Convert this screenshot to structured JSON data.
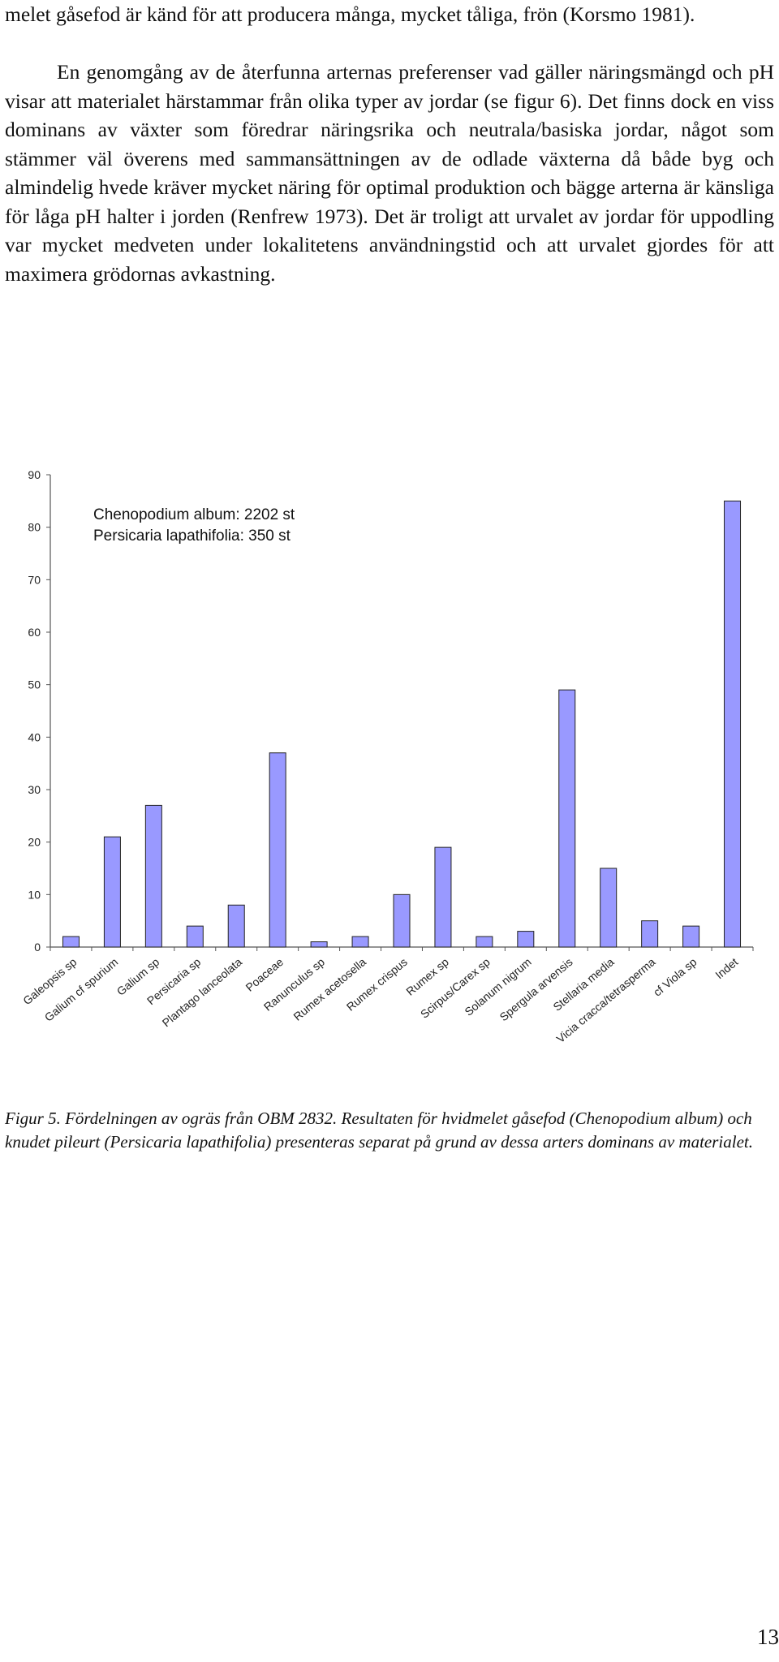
{
  "text": {
    "paragraph_1": "melet gåsefod är känd för att producera många, mycket tåliga, frön (Korsmo 1981).",
    "paragraph_2": "En genomgång av de återfunna arternas preferenser vad gäller näringsmängd och pH visar att materialet härstammar från olika typer av jordar (se figur 6). Det finns dock en viss dominans av växter som föredrar näringsrika och neutrala/basiska jordar, något som stämmer väl överens med sammansättningen av de odlade växterna då både byg och almindelig hvede kräver mycket näring för optimal produktion och bägge arterna är känsliga för låga pH halter i jorden (Renfrew 1973). Det är troligt att urvalet av jordar för uppodling var mycket medveten under lokalitetens användningstid och att urvalet gjordes för att maximera grödornas avkastning."
  },
  "figure": {
    "caption": "Figur 5. Fördelningen av ogräs från OBM 2832. Resultaten för hvidmelet gåsefod (Chenopodium album) och knudet pileurt (Persicaria lapathifolia) presenteras separat på grund av dessa arters dominans av materialet."
  },
  "chart_data": {
    "type": "bar",
    "title": "",
    "xlabel": "",
    "ylabel": "",
    "ylim": [
      0,
      90
    ],
    "yticks": [
      0,
      10,
      20,
      30,
      40,
      50,
      60,
      70,
      80,
      90
    ],
    "grid": false,
    "legend": "none",
    "bar_color": "#9999ff",
    "annotations": [
      "Chenopodium album: 2202 st",
      "Persicaria lapathifolia: 350 st"
    ],
    "categories": [
      "Galeopsis sp",
      "Galium cf spurium",
      "Galium sp",
      "Persicaria sp",
      "Plantago lanceolata",
      "Poaceae",
      "Ranunculus sp",
      "Rumex acetosella",
      "Rumex crispus",
      "Rumex sp",
      "Scirpus/Carex sp",
      "Solanum nigrum",
      "Spergula arvensis",
      "Stellaria media",
      "Vicia cracca/tetrasperma",
      "cf Viola sp",
      "Indet"
    ],
    "values": [
      2,
      21,
      27,
      4,
      8,
      37,
      1,
      2,
      10,
      19,
      2,
      3,
      49,
      15,
      5,
      4,
      85
    ]
  },
  "page": {
    "number": "13"
  }
}
